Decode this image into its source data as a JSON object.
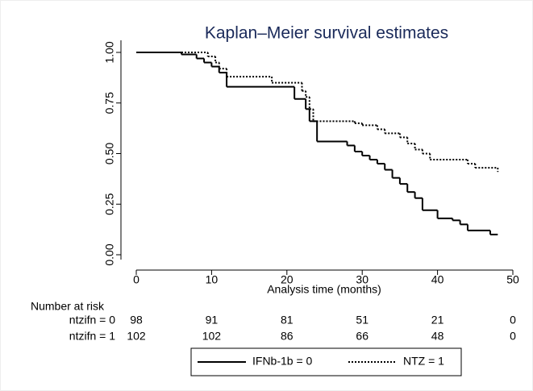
{
  "chart_data": {
    "type": "step",
    "title": "Kaplan–Meier survival estimates",
    "x_label": "Analysis time (months)",
    "xlim": [
      0,
      50
    ],
    "ylim": [
      0,
      1
    ],
    "xticks": [
      0,
      10,
      20,
      30,
      40,
      50
    ],
    "yticks": [
      {
        "value": 0,
        "label": "0.00"
      },
      {
        "value": 0.25,
        "label": "0.25"
      },
      {
        "value": 0.5,
        "label": "0.50"
      },
      {
        "value": 0.75,
        "label": "0.75"
      },
      {
        "value": 1,
        "label": "1.00"
      }
    ],
    "series": [
      {
        "name": "IFNb-1b = 0",
        "color": "#000000",
        "dash": "solid",
        "x": [
          0,
          6,
          8,
          9,
          10,
          11,
          12,
          21,
          22.5,
          23,
          24,
          28,
          29,
          30,
          31,
          32,
          33,
          34,
          35,
          36,
          37,
          38,
          40,
          42,
          43,
          44,
          47,
          48
        ],
        "values": [
          1,
          0.99,
          0.97,
          0.95,
          0.93,
          0.9,
          0.83,
          0.77,
          0.72,
          0.66,
          0.56,
          0.54,
          0.51,
          0.49,
          0.47,
          0.45,
          0.42,
          0.38,
          0.35,
          0.31,
          0.28,
          0.22,
          0.18,
          0.17,
          0.15,
          0.12,
          0.1,
          0.1
        ]
      },
      {
        "name": "NTZ = 1",
        "color": "#000000",
        "dash": "dotted",
        "x": [
          0,
          9.5,
          10.5,
          11,
          12,
          18,
          22,
          22.5,
          23,
          23.5,
          29,
          30,
          32,
          33,
          35,
          36,
          37,
          38,
          39,
          44,
          45,
          48
        ],
        "values": [
          1,
          0.98,
          0.95,
          0.92,
          0.88,
          0.85,
          0.81,
          0.78,
          0.72,
          0.66,
          0.65,
          0.64,
          0.62,
          0.6,
          0.58,
          0.55,
          0.52,
          0.5,
          0.47,
          0.45,
          0.43,
          0.41
        ]
      }
    ],
    "risk_table": {
      "title": "Number at risk",
      "rows": [
        {
          "label": "ntzifn = 0",
          "values": [
            98,
            91,
            81,
            51,
            21,
            0
          ]
        },
        {
          "label": "ntzifn = 1",
          "values": [
            102,
            102,
            86,
            66,
            48,
            0
          ]
        }
      ]
    },
    "legend": "bottom"
  }
}
